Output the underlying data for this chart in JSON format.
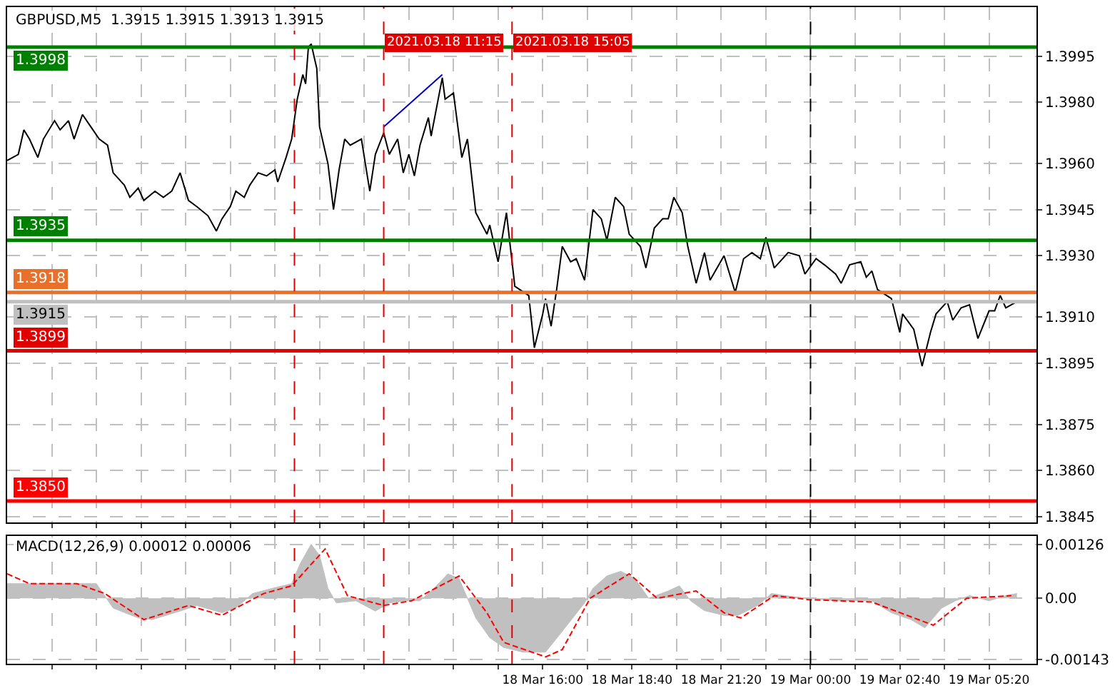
{
  "chart_data": [
    {
      "type": "line",
      "title": "GBPUSD,M5  1.3915 1.3915 1.3913 1.3915",
      "tick_labels": "y",
      "grid": true,
      "xlim": [
        "2021-03-18T00:00",
        "2021-03-19T06:45"
      ],
      "xticks": [
        {
          "value": "2021-03-18T01:20",
          "label": null
        },
        {
          "value": "2021-03-18T02:40",
          "label": null
        },
        {
          "value": "2021-03-18T04:00",
          "label": null
        },
        {
          "value": "2021-03-18T05:20",
          "label": null
        },
        {
          "value": "2021-03-18T06:40",
          "label": null
        },
        {
          "value": "2021-03-18T08:00",
          "label": null
        },
        {
          "value": "2021-03-18T09:20",
          "label": null
        },
        {
          "value": "2021-03-18T10:40",
          "label": null
        },
        {
          "value": "2021-03-18T12:00",
          "label": null
        },
        {
          "value": "2021-03-18T13:20",
          "label": null
        },
        {
          "value": "2021-03-18T14:40",
          "label": null
        },
        {
          "value": "2021-03-18T16:00",
          "label": null
        },
        {
          "value": "2021-03-18T17:20",
          "label": null
        },
        {
          "value": "2021-03-18T18:40",
          "label": null
        },
        {
          "value": "2021-03-18T20:00",
          "label": null
        },
        {
          "value": "2021-03-18T21:20",
          "label": null
        },
        {
          "value": "2021-03-18T22:40",
          "label": null
        },
        {
          "value": "2021-03-19T00:00",
          "label": null
        },
        {
          "value": "2021-03-19T01:20",
          "label": null
        },
        {
          "value": "2021-03-19T02:40",
          "label": null
        },
        {
          "value": "2021-03-19T04:00",
          "label": null
        },
        {
          "value": "2021-03-19T05:20",
          "label": null
        }
      ],
      "ylim": [
        1.3843,
        1.4011
      ],
      "yticks": [
        1.3995,
        {
          "value": 1.398,
          "label": "1.3980"
        },
        {
          "value": 1.396,
          "label": "1.3960"
        },
        1.3945,
        {
          "value": 1.393,
          "label": "1.3930"
        },
        {
          "value": 1.391,
          "label": "1.3910"
        },
        1.3895,
        1.3875,
        {
          "value": 1.386,
          "label": "1.3860"
        },
        1.3845
      ],
      "series": [
        {
          "color": "#000000",
          "x": [
            "2021-03-18T00:00",
            "2021-03-18T00:20",
            "2021-03-18T00:30",
            "2021-03-18T00:40",
            "2021-03-18T00:55",
            "2021-03-18T01:05",
            "2021-03-18T01:25",
            "2021-03-18T01:35",
            "2021-03-18T01:50",
            "2021-03-18T02:00",
            "2021-03-18T02:15",
            "2021-03-18T02:30",
            "2021-03-18T02:45",
            "2021-03-18T03:00",
            "2021-03-18T03:10",
            "2021-03-18T03:30",
            "2021-03-18T03:40",
            "2021-03-18T03:55",
            "2021-03-18T04:05",
            "2021-03-18T04:25",
            "2021-03-18T04:40",
            "2021-03-18T04:55",
            "2021-03-18T05:10",
            "2021-03-18T05:25",
            "2021-03-18T05:40",
            "2021-03-18T06:00",
            "2021-03-18T06:15",
            "2021-03-18T06:25",
            "2021-03-18T06:40",
            "2021-03-18T06:50",
            "2021-03-18T07:05",
            "2021-03-18T07:15",
            "2021-03-18T07:30",
            "2021-03-18T07:45",
            "2021-03-18T08:00",
            "2021-03-18T08:05",
            "2021-03-18T08:20",
            "2021-03-18T08:30",
            "2021-03-18T08:40",
            "2021-03-18T08:50",
            "2021-03-18T08:55",
            "2021-03-18T09:00",
            "2021-03-18T09:05",
            "2021-03-18T09:15",
            "2021-03-18T09:20",
            "2021-03-18T09:35",
            "2021-03-18T09:45",
            "2021-03-18T09:55",
            "2021-03-18T10:05",
            "2021-03-18T10:15",
            "2021-03-18T10:35",
            "2021-03-18T10:50",
            "2021-03-18T11:00",
            "2021-03-18T11:15",
            "2021-03-18T11:25",
            "2021-03-18T11:40",
            "2021-03-18T11:50",
            "2021-03-18T12:00",
            "2021-03-18T12:10",
            "2021-03-18T12:20",
            "2021-03-18T12:35",
            "2021-03-18T12:40",
            "2021-03-18T13:00",
            "2021-03-18T13:05",
            "2021-03-18T13:20",
            "2021-03-18T13:35",
            "2021-03-18T13:45",
            "2021-03-18T14:00",
            "2021-03-18T14:20",
            "2021-03-18T14:25",
            "2021-03-18T14:40",
            "2021-03-18T14:55",
            "2021-03-18T15:10",
            "2021-03-18T15:35",
            "2021-03-18T15:45",
            "2021-03-18T16:00",
            "2021-03-18T16:05",
            "2021-03-18T16:15",
            "2021-03-18T16:25",
            "2021-03-18T16:35",
            "2021-03-18T16:50",
            "2021-03-18T17:00",
            "2021-03-18T17:15",
            "2021-03-18T17:30",
            "2021-03-18T17:45",
            "2021-03-18T17:55",
            "2021-03-18T18:10",
            "2021-03-18T18:25",
            "2021-03-18T18:35",
            "2021-03-18T18:55",
            "2021-03-18T19:05",
            "2021-03-18T19:20",
            "2021-03-18T19:35",
            "2021-03-18T19:45",
            "2021-03-18T19:55",
            "2021-03-18T20:10",
            "2021-03-18T20:20",
            "2021-03-18T20:35",
            "2021-03-18T20:50",
            "2021-03-18T21:00",
            "2021-03-18T21:25",
            "2021-03-18T21:45",
            "2021-03-18T22:00",
            "2021-03-18T22:15",
            "2021-03-18T22:30",
            "2021-03-18T22:40",
            "2021-03-18T22:55",
            "2021-03-18T23:20",
            "2021-03-18T23:40",
            "2021-03-18T23:50",
            "2021-03-19T00:10",
            "2021-03-19T00:25",
            "2021-03-19T00:45",
            "2021-03-19T00:55",
            "2021-03-19T01:10",
            "2021-03-19T01:30",
            "2021-03-19T01:40",
            "2021-03-19T01:50",
            "2021-03-19T02:00",
            "2021-03-19T02:25",
            "2021-03-19T02:40",
            "2021-03-19T02:45",
            "2021-03-19T03:05",
            "2021-03-19T03:20",
            "2021-03-19T03:35",
            "2021-03-19T03:45",
            "2021-03-19T04:05",
            "2021-03-19T04:15",
            "2021-03-19T04:30",
            "2021-03-19T04:45",
            "2021-03-19T05:00",
            "2021-03-19T05:20",
            "2021-03-19T05:30",
            "2021-03-19T05:40",
            "2021-03-19T05:50",
            "2021-03-19T06:10"
          ],
          "values": [
            1.3961,
            1.3963,
            1.3971,
            1.3968,
            1.3962,
            1.3968,
            1.3974,
            1.3971,
            1.3974,
            1.3968,
            1.3976,
            1.3972,
            1.3968,
            1.3966,
            1.3957,
            1.3953,
            1.3949,
            1.3952,
            1.3948,
            1.3951,
            1.3949,
            1.3951,
            1.3957,
            1.3948,
            1.3946,
            1.3943,
            1.3938,
            1.3942,
            1.3946,
            1.3951,
            1.3949,
            1.3953,
            1.3957,
            1.3956,
            1.3958,
            1.3954,
            1.3962,
            1.3968,
            1.3981,
            1.3989,
            1.3986,
            1.3998,
            1.3999,
            1.3991,
            1.3972,
            1.396,
            1.3945,
            1.3958,
            1.3968,
            1.3966,
            1.3968,
            1.3951,
            1.3963,
            1.397,
            1.3963,
            1.3968,
            1.3957,
            1.3963,
            1.3956,
            1.3966,
            1.3975,
            1.3969,
            1.3988,
            1.3981,
            1.3983,
            1.3962,
            1.3968,
            1.3944,
            1.3937,
            1.394,
            1.3928,
            1.3944,
            1.392,
            1.3917,
            1.39,
            1.3911,
            1.3916,
            1.3907,
            1.3919,
            1.3933,
            1.3928,
            1.3929,
            1.3922,
            1.3945,
            1.3942,
            1.3935,
            1.3949,
            1.3946,
            1.3937,
            1.3933,
            1.3926,
            1.3939,
            1.3942,
            1.3942,
            1.3949,
            1.3944,
            1.3933,
            1.3921,
            1.3931,
            1.3922,
            1.393,
            1.3918,
            1.3929,
            1.3931,
            1.3929,
            1.3936,
            1.3926,
            1.3931,
            1.393,
            1.3924,
            1.3929,
            1.3927,
            1.3924,
            1.3921,
            1.3927,
            1.3928,
            1.3923,
            1.3925,
            1.3919,
            1.3916,
            1.3905,
            1.3911,
            1.3906,
            1.3894,
            1.3905,
            1.3911,
            1.3915,
            1.3909,
            1.3913,
            1.3914,
            1.3903,
            1.3912,
            1.3912,
            1.3917,
            1.3913,
            1.3915
          ]
        },
        {
          "color": "#0000cd",
          "x": [
            "2021-03-18T11:15",
            "2021-03-18T13:00"
          ],
          "values": [
            1.3972,
            1.3989
          ]
        }
      ],
      "ref_lines": [
        {
          "axis": "y",
          "value": 1.3998,
          "label": "1.3998",
          "color": "#008000",
          "line_style": "solid"
        },
        {
          "axis": "y",
          "value": 1.3935,
          "label": "1.3935",
          "color": "#008000",
          "line_style": "solid"
        },
        {
          "axis": "y",
          "value": 1.3918,
          "label": "1.3918",
          "color": "#e8702a",
          "line_style": "solid"
        },
        {
          "axis": "y",
          "value": 1.3915,
          "label": "1.3915",
          "color": "#c0c0c0",
          "line_style": "solid"
        },
        {
          "axis": "y",
          "value": 1.3899,
          "label": "1.3899",
          "color": "#e00000",
          "line_style": "solid"
        },
        {
          "axis": "y",
          "value": 1.385,
          "label": "1.3850",
          "color": "#ff0000",
          "line_style": "solid"
        },
        {
          "axis": "x",
          "value": "2021-03-18T08:35",
          "color": "#e00000",
          "line_style": "dashed"
        },
        {
          "axis": "x",
          "value": "2021-03-18T11:15",
          "label": "2021.03.18 11:15",
          "color": "#e00000",
          "line_style": "dashed"
        },
        {
          "axis": "x",
          "value": "2021-03-18T15:05",
          "label": "2021.03.18 15:05",
          "color": "#e00000",
          "line_style": "dashed"
        },
        {
          "axis": "x",
          "value": "2021-03-19T00:00",
          "color": "#000000",
          "line_style": "dashed"
        }
      ]
    },
    {
      "type": "area",
      "title": "MACD(12,26,9) 0.00012 0.00006",
      "grid": true,
      "xlim": [
        "2021-03-18T00:00",
        "2021-03-19T06:45"
      ],
      "xticks": [
        {
          "value": "2021-03-18T01:20",
          "label": null
        },
        {
          "value": "2021-03-18T02:40",
          "label": null
        },
        {
          "value": "2021-03-18T04:00",
          "label": null
        },
        {
          "value": "2021-03-18T05:20",
          "label": null
        },
        {
          "value": "2021-03-18T06:40",
          "label": null
        },
        {
          "value": "2021-03-18T08:00",
          "label": null
        },
        {
          "value": "2021-03-18T09:20",
          "label": null
        },
        {
          "value": "2021-03-18T10:40",
          "label": null
        },
        {
          "value": "2021-03-18T12:00",
          "label": null
        },
        {
          "value": "2021-03-18T13:20",
          "label": null
        },
        {
          "value": "2021-03-18T14:40",
          "label": null
        },
        {
          "value": "2021-03-18T16:00",
          "label": "18 Mar 16:00"
        },
        {
          "value": "2021-03-18T17:20",
          "label": null
        },
        {
          "value": "2021-03-18T18:40",
          "label": "18 Mar 18:40"
        },
        {
          "value": "2021-03-18T20:00",
          "label": null
        },
        {
          "value": "2021-03-18T21:20",
          "label": "18 Mar 21:20"
        },
        {
          "value": "2021-03-18T22:40",
          "label": null
        },
        {
          "value": "2021-03-19T00:00",
          "label": "19 Mar 00:00"
        },
        {
          "value": "2021-03-19T01:20",
          "label": null
        },
        {
          "value": "2021-03-19T02:40",
          "label": "19 Mar 02:40"
        },
        {
          "value": "2021-03-19T04:00",
          "label": null
        },
        {
          "value": "2021-03-19T05:20",
          "label": "19 Mar 05:20"
        }
      ],
      "ylim": [
        -0.00153,
        0.00146
      ],
      "yticks": [
        0.00126,
        {
          "value": 0,
          "label": "0.00"
        },
        -0.00143
      ],
      "series": [
        {
          "color": "#c0c0c0",
          "x": [
            "2021-03-18T00:00",
            "2021-03-18T01:15",
            "2021-03-18T02:40",
            "2021-03-18T03:10",
            "2021-03-18T03:55",
            "2021-03-18T04:20",
            "2021-03-18T05:10",
            "2021-03-18T05:40",
            "2021-03-18T06:25",
            "2021-03-18T06:50",
            "2021-03-18T07:20",
            "2021-03-18T07:55",
            "2021-03-18T08:30",
            "2021-03-18T08:45",
            "2021-03-18T09:05",
            "2021-03-18T09:20",
            "2021-03-18T09:35",
            "2021-03-18T09:50",
            "2021-03-18T10:25",
            "2021-03-18T11:00",
            "2021-03-18T11:25",
            "2021-03-18T11:55",
            "2021-03-18T12:20",
            "2021-03-18T12:45",
            "2021-03-18T13:10",
            "2021-03-18T13:30",
            "2021-03-18T13:45",
            "2021-03-18T14:00",
            "2021-03-18T14:25",
            "2021-03-18T14:50",
            "2021-03-18T15:25",
            "2021-03-18T16:05",
            "2021-03-18T16:40",
            "2021-03-18T17:15",
            "2021-03-18T17:30",
            "2021-03-18T17:55",
            "2021-03-18T18:20",
            "2021-03-18T18:45",
            "2021-03-18T19:10",
            "2021-03-18T19:45",
            "2021-03-18T20:05",
            "2021-03-18T20:25",
            "2021-03-18T20:50",
            "2021-03-18T21:25",
            "2021-03-18T21:50",
            "2021-03-18T22:25",
            "2021-03-18T22:50",
            "2021-03-18T23:15",
            "2021-03-18T23:55",
            "2021-03-19T00:45",
            "2021-03-19T01:50",
            "2021-03-19T02:25",
            "2021-03-19T03:00",
            "2021-03-19T03:25",
            "2021-03-19T03:55",
            "2021-03-19T04:20",
            "2021-03-19T04:45",
            "2021-03-19T05:20",
            "2021-03-19T05:50",
            "2021-03-19T06:10"
          ],
          "values": [
            0.00034,
            0.00034,
            0.00034,
            -0.00023,
            -0.00046,
            -0.0005,
            -0.0003,
            -0.00017,
            -0.00034,
            -0.00023,
            0.00011,
            0.00023,
            0.00034,
            0.0008,
            0.00126,
            0.001,
            0.00023,
            -0.00011,
            -6e-05,
            -0.0003,
            -0.00011,
            -6e-05,
            -6e-05,
            0.00023,
            0.00057,
            0.00046,
            0,
            -0.00046,
            -0.00092,
            -0.00115,
            -0.00126,
            -0.00126,
            -0.00069,
            -0.00011,
            0.00023,
            0.00052,
            0.00063,
            0.00046,
            0,
            0.00017,
            0.00029,
            -6e-05,
            -0.00029,
            -0.0004,
            -0.0004,
            -0.00017,
            0.00011,
            6e-05,
            0,
            -6e-05,
            -6e-05,
            -0.00034,
            -0.0005,
            -0.00069,
            -0.00023,
            -6e-05,
            6e-05,
            -6e-05,
            6e-05,
            0.00011
          ]
        },
        {
          "type": "line",
          "color": "#ff0000",
          "line_style": "dashed",
          "x": [
            "2021-03-18T00:00",
            "2021-03-18T00:40",
            "2021-03-18T02:05",
            "2021-03-18T02:55",
            "2021-03-18T04:05",
            "2021-03-18T05:25",
            "2021-03-18T06:25",
            "2021-03-18T07:40",
            "2021-03-18T08:30",
            "2021-03-18T09:30",
            "2021-03-18T10:10",
            "2021-03-18T11:15",
            "2021-03-18T12:05",
            "2021-03-18T13:30",
            "2021-03-18T14:20",
            "2021-03-18T14:50",
            "2021-03-18T16:05",
            "2021-03-18T16:35",
            "2021-03-18T17:25",
            "2021-03-18T18:35",
            "2021-03-18T19:25",
            "2021-03-18T20:35",
            "2021-03-18T21:25",
            "2021-03-18T21:55",
            "2021-03-18T22:55",
            "2021-03-18T23:55",
            "2021-03-19T01:50",
            "2021-03-19T03:40",
            "2021-03-19T04:40",
            "2021-03-19T06:00"
          ],
          "values": [
            0.00057,
            0.00034,
            0.00034,
            0.00011,
            -0.0005,
            -0.00017,
            -0.0004,
            0.00011,
            0.00029,
            0.00115,
            6e-05,
            -0.00017,
            -6e-05,
            0.00052,
            -0.00034,
            -0.00103,
            -0.00137,
            -0.0012,
            0,
            0.00057,
            0,
            0.00017,
            -0.00034,
            -0.00046,
            6e-05,
            -3e-05,
            -9e-05,
            -0.00063,
            0,
            6e-05
          ]
        }
      ],
      "ref_lines": [
        {
          "axis": "x",
          "value": "2021-03-18T08:35",
          "color": "#e00000",
          "line_style": "dashed"
        },
        {
          "axis": "x",
          "value": "2021-03-18T11:15",
          "color": "#e00000",
          "line_style": "dashed"
        },
        {
          "axis": "x",
          "value": "2021-03-18T15:05",
          "color": "#e00000",
          "line_style": "dashed"
        },
        {
          "axis": "x",
          "value": "2021-03-19T00:00",
          "color": "#000000",
          "line_style": "dashed"
        }
      ]
    }
  ]
}
